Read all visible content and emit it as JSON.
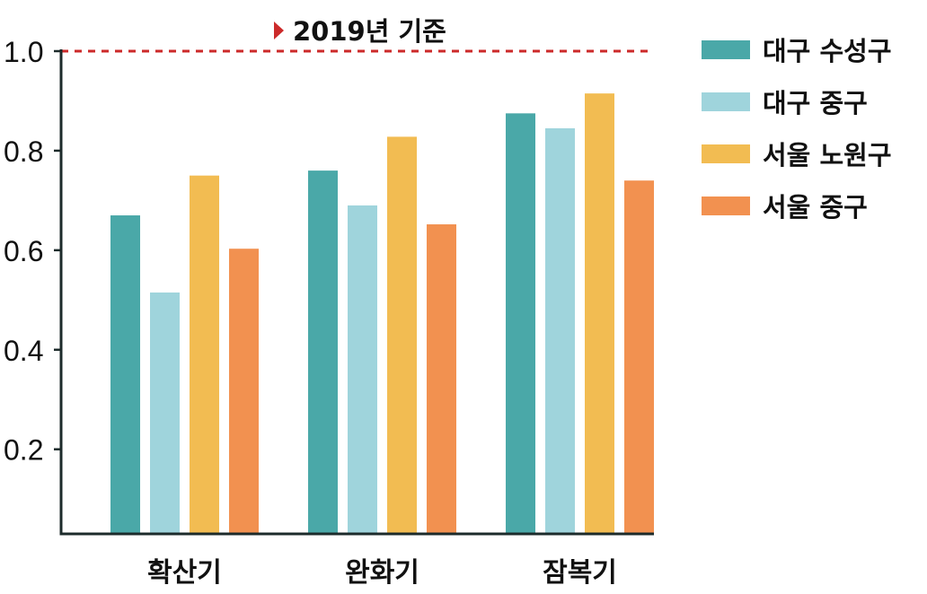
{
  "chart_data": {
    "type": "bar",
    "categories": [
      "확산기",
      "완화기",
      "잠복기"
    ],
    "series": [
      {
        "name": "대구 수성구",
        "color": "#4aa8a8",
        "values": [
          0.67,
          0.76,
          0.875
        ]
      },
      {
        "name": "대구 중구",
        "color": "#9fd4dc",
        "values": [
          0.515,
          0.69,
          0.845
        ]
      },
      {
        "name": "서울 노원구",
        "color": "#f2bc52",
        "values": [
          0.75,
          0.828,
          0.915
        ]
      },
      {
        "name": "서울 중구",
        "color": "#f29150",
        "values": [
          0.603,
          0.652,
          0.74
        ]
      }
    ],
    "ylim": [
      0.03,
      1.0
    ],
    "yticks": [
      "0.2",
      "0.4",
      "0.6",
      "0.8",
      "1.0"
    ],
    "ytick_values": [
      0.2,
      0.4,
      0.6,
      0.8,
      1.0
    ],
    "reference_line": {
      "value": 1.0,
      "label": "2019년 기준",
      "color": "#cc2a2a",
      "style": "dashed"
    },
    "grid": false,
    "legend": "right"
  }
}
